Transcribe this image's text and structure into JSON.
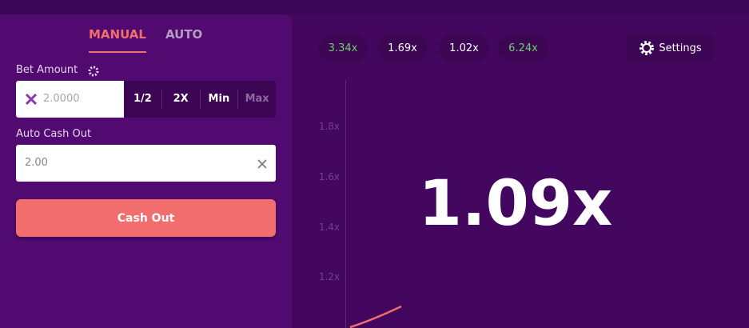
{
  "tabs": [
    "MANUAL",
    "AUTO"
  ],
  "bet_amount": {
    "label": "Bet Amount",
    "placeholder": "2.0000",
    "buttons": [
      "1/2",
      "2X",
      "Min",
      "Max"
    ]
  },
  "auto_cash_out": {
    "label": "Auto Cash Out",
    "value": "2.00"
  },
  "cash_out_button": "Cash Out",
  "history": [
    "3.34x",
    "1.69x",
    "1.02x",
    "6.24x"
  ],
  "settings": "Settings",
  "graph": {
    "axis_labels": [
      "1.8x",
      "1.6x",
      "1.4x",
      "1.2x"
    ],
    "multiplier": "1.09x"
  }
}
